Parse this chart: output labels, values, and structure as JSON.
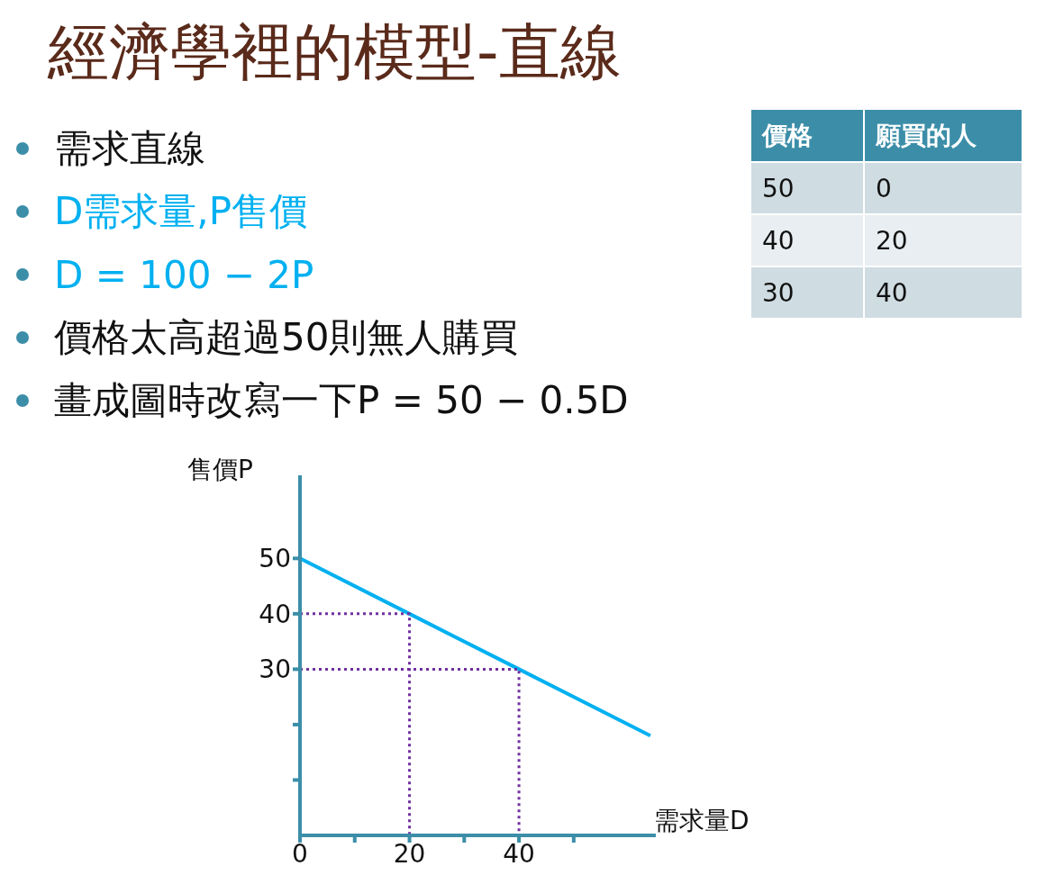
{
  "chart_data": {
    "type": "line",
    "title": "經濟學裡的模型-直線",
    "annotations": [
      "需求直線",
      "D需求量,P售價",
      "D = 100 − 2P",
      "價格太高超過50則無人購買",
      "畫成圖時改寫一下P = 50 − 0.5D",
      "價格",
      "願買的人",
      "50",
      "0",
      "40",
      "20",
      "30",
      "40"
    ],
    "xlabel": "需求量D",
    "ylabel": "售價P",
    "xlim": [
      0,
      65
    ],
    "ylim": [
      0,
      65
    ],
    "xticks": [
      0,
      {
        "value": 10,
        "label": null
      },
      20,
      {
        "value": 30,
        "label": null
      },
      40,
      {
        "value": 50,
        "label": null
      }
    ],
    "yticks": [
      {
        "value": 10,
        "label": null
      },
      {
        "value": 20,
        "label": null
      },
      30,
      40,
      50
    ],
    "grid": false,
    "marker": "none",
    "series": [
      {
        "x": [
          0,
          20,
          40,
          64
        ],
        "values": [
          50,
          40,
          30,
          18
        ],
        "color": "#00b0f0",
        "line_style": "solid"
      },
      {
        "x": [
          0,
          20,
          20
        ],
        "values": [
          40,
          40,
          0
        ],
        "color": "#7030a0",
        "line_style": "dotted"
      },
      {
        "x": [
          0,
          40,
          40
        ],
        "values": [
          30,
          30,
          0
        ],
        "color": "#7030a0",
        "line_style": "dotted"
      }
    ]
  }
}
